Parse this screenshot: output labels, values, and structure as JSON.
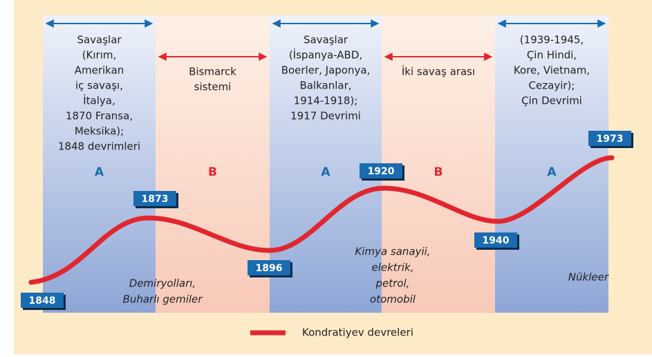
{
  "columns": [
    {
      "phase": "A",
      "lines": [
        "Savaşlar",
        "(Kırım,",
        "Amerikan",
        "iç savaşı,",
        "İtalya,",
        "1870 Fransa,",
        "Meksika);",
        "1848 devrimleri"
      ]
    },
    {
      "phase": "B",
      "lines": [
        "Bismarck",
        "sistemi"
      ]
    },
    {
      "phase": "A",
      "lines": [
        "Savaşlar",
        "(İspanya-ABD,",
        "Boerler, Japonya,",
        "Balkanlar,",
        "1914-1918);",
        "1917 Devrimi"
      ]
    },
    {
      "phase": "B",
      "lines": [
        "İki savaş arası"
      ]
    },
    {
      "phase": "A",
      "lines": [
        "(1939-1945,",
        "Çin Hindi,",
        "Kore, Vietnam,",
        "Cezayir);",
        "Çin Devrimi"
      ]
    }
  ],
  "years": [
    "1848",
    "1873",
    "1896",
    "1920",
    "1940",
    "1973"
  ],
  "technologies": [
    {
      "lines": [
        "Demiryolları,",
        "Buharlı gemiler"
      ]
    },
    {
      "lines": [
        "Kimya sanayii,",
        "elektrik,",
        "petrol,",
        "otomobil"
      ]
    },
    {
      "lines": [
        "Nükleer"
      ]
    }
  ],
  "legend": "Kondratiyev devreleri"
}
